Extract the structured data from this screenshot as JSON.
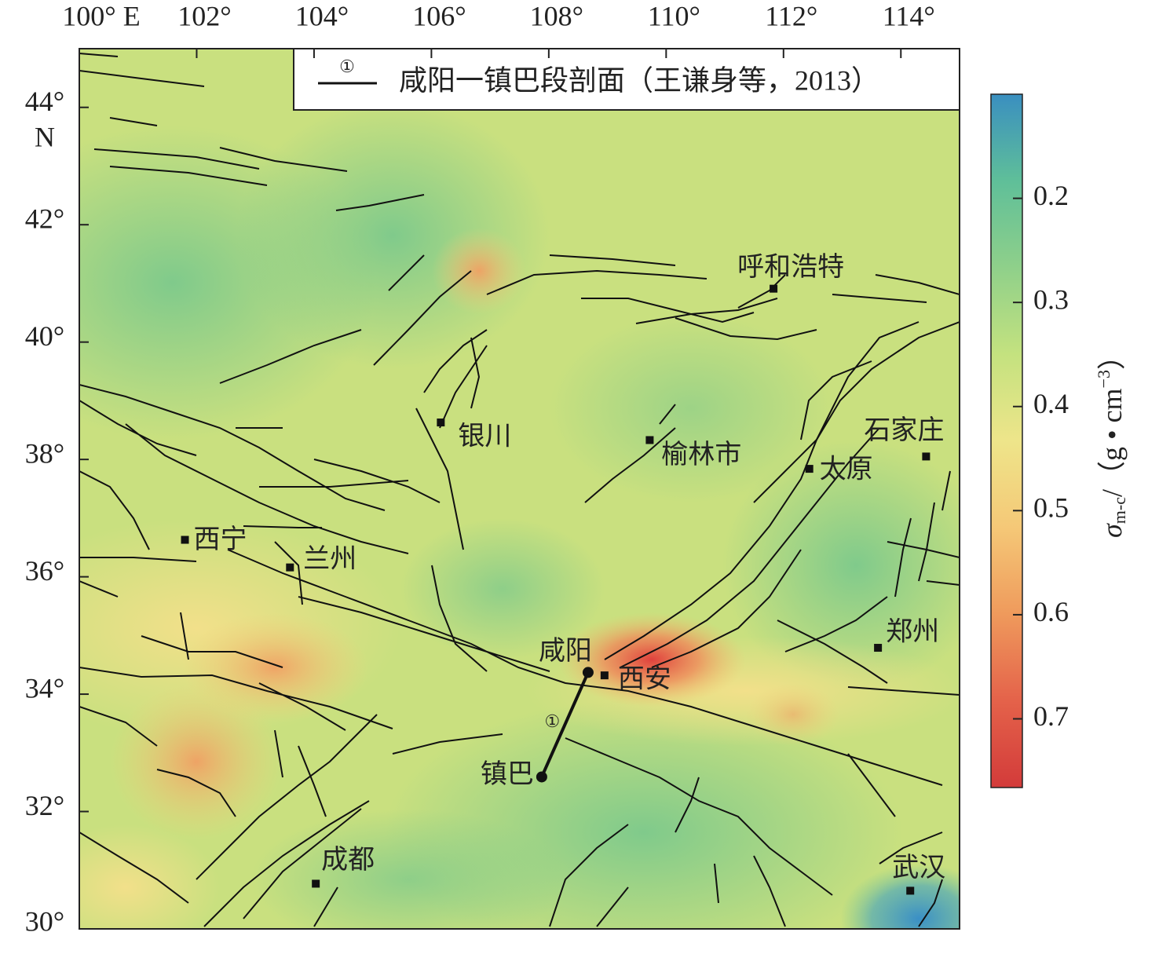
{
  "map": {
    "xlim": [
      100,
      115
    ],
    "ylim": [
      30,
      45
    ],
    "xticks": [
      {
        "value": 100,
        "label": "100° E"
      },
      {
        "value": 102,
        "label": "102°"
      },
      {
        "value": 104,
        "label": "104°"
      },
      {
        "value": 106,
        "label": "106°"
      },
      {
        "value": 108,
        "label": "108°"
      },
      {
        "value": 110,
        "label": "110°"
      },
      {
        "value": 112,
        "label": "112°"
      },
      {
        "value": 114,
        "label": "114°"
      }
    ],
    "yticks": [
      {
        "value": 44,
        "label": "44°"
      },
      {
        "value": 42,
        "label": "42°"
      },
      {
        "value": 40,
        "label": "40°"
      },
      {
        "value": 38,
        "label": "38°"
      },
      {
        "value": 36,
        "label": "36°"
      },
      {
        "value": 34,
        "label": "34°"
      },
      {
        "value": 32,
        "label": "32°"
      },
      {
        "value": 30,
        "label": "30°"
      }
    ],
    "lat_hemisphere": "N",
    "legend": {
      "symbol": "①",
      "text": "咸阳一镇巴段剖面（王谦身等，2013）"
    },
    "profile_label": "①",
    "cities": [
      {
        "name": "呼和浩特",
        "lon": 111.83,
        "lat": 40.91
      },
      {
        "name": "银川",
        "lon": 106.16,
        "lat": 38.63
      },
      {
        "name": "榆林市",
        "lon": 109.72,
        "lat": 38.33
      },
      {
        "name": "太原",
        "lon": 112.44,
        "lat": 37.84
      },
      {
        "name": "石家庄",
        "lon": 114.43,
        "lat": 38.05
      },
      {
        "name": "西宁",
        "lon": 101.8,
        "lat": 36.63
      },
      {
        "name": "兰州",
        "lon": 103.59,
        "lat": 36.16
      },
      {
        "name": "郑州",
        "lon": 113.61,
        "lat": 34.79
      },
      {
        "name": "咸阳",
        "lon": 108.67,
        "lat": 34.37
      },
      {
        "name": "西安",
        "lon": 108.95,
        "lat": 34.32
      },
      {
        "name": "镇巴",
        "lon": 107.88,
        "lat": 32.59
      },
      {
        "name": "成都",
        "lon": 104.03,
        "lat": 30.77
      },
      {
        "name": "武汉",
        "lon": 114.16,
        "lat": 30.65
      }
    ],
    "colorbar": {
      "lim": [
        0.1,
        0.766
      ],
      "ticks": [
        0.2,
        0.3,
        0.4,
        0.5,
        0.6,
        0.7
      ],
      "colors": [
        "#3a8fc0",
        "#5fbf99",
        "#8fd08a",
        "#c4e27f",
        "#eee58a",
        "#f5c877",
        "#ef9a5c",
        "#e4624a",
        "#d33b3a"
      ],
      "label_symbol": "σ",
      "label_subscript": "m-c",
      "label_unit": "/（g • cm",
      "label_exponent": "−3",
      "label_close": "）"
    }
  }
}
